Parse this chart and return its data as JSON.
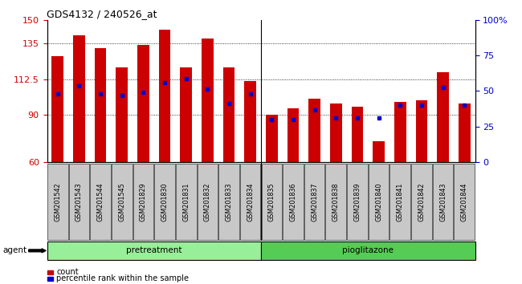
{
  "title": "GDS4132 / 240526_at",
  "samples": [
    "GSM201542",
    "GSM201543",
    "GSM201544",
    "GSM201545",
    "GSM201829",
    "GSM201830",
    "GSM201831",
    "GSM201832",
    "GSM201833",
    "GSM201834",
    "GSM201835",
    "GSM201836",
    "GSM201837",
    "GSM201838",
    "GSM201839",
    "GSM201840",
    "GSM201841",
    "GSM201842",
    "GSM201843",
    "GSM201844"
  ],
  "bar_values": [
    127,
    140,
    132,
    120,
    134,
    144,
    120,
    138,
    120,
    111,
    90,
    94,
    100,
    97,
    95,
    73,
    98,
    99,
    117,
    97
  ],
  "blue_dot_values": [
    103,
    108,
    103,
    102,
    104,
    110,
    113,
    106,
    97,
    103,
    87,
    87,
    93,
    88,
    88,
    88,
    96,
    96,
    107,
    96
  ],
  "ylim": [
    60,
    150
  ],
  "yticks_left": [
    60,
    90,
    112.5,
    135,
    150
  ],
  "ytick_labels_left": [
    "60",
    "90",
    "112.5",
    "135",
    "150"
  ],
  "yticks_right_vals": [
    0,
    25,
    50,
    75,
    100
  ],
  "ytick_labels_right": [
    "0",
    "25",
    "50",
    "75",
    "100%"
  ],
  "bar_color": "#cc0000",
  "dot_color": "#0000cc",
  "tick_bg_color": "#c8c8c8",
  "pretreatment_color": "#99ee99",
  "pioglitazone_color": "#55cc55",
  "pretreatment_label": "pretreatment",
  "pioglitazone_label": "pioglitazone",
  "agent_label": "agent",
  "legend_count": "count",
  "legend_pct": "percentile rank within the sample",
  "pretreatment_count": 10,
  "pioglitazone_count": 10,
  "bar_width": 0.55
}
